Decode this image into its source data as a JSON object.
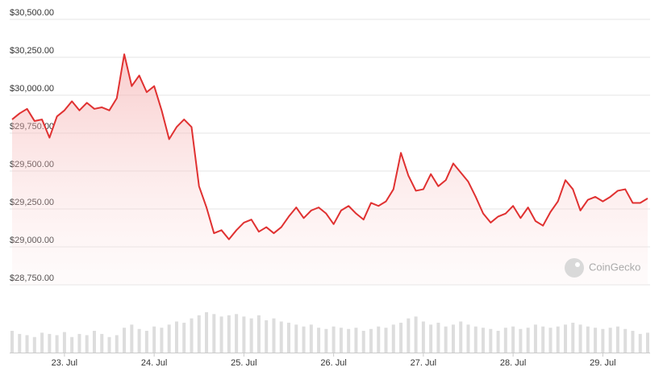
{
  "chart_data": {
    "type": "line",
    "categories": [
      null,
      null,
      null,
      null,
      null,
      null,
      null,
      "23. Jul",
      null,
      null,
      null,
      null,
      null,
      null,
      null,
      null,
      null,
      null,
      null,
      "24. Jul",
      null,
      null,
      null,
      null,
      null,
      null,
      null,
      null,
      null,
      null,
      null,
      "25. Jul",
      null,
      null,
      null,
      null,
      null,
      null,
      null,
      null,
      null,
      null,
      null,
      "26. Jul",
      null,
      null,
      null,
      null,
      null,
      null,
      null,
      null,
      null,
      null,
      null,
      "27. Jul",
      null,
      null,
      null,
      null,
      null,
      null,
      null,
      null,
      null,
      null,
      null,
      "28. Jul",
      null,
      null,
      null,
      null,
      null,
      null,
      null,
      null,
      null,
      null,
      null,
      "29. Jul",
      null,
      null,
      null,
      null,
      null,
      null
    ],
    "series": [
      {
        "color": "#e03131",
        "values": [
          29840,
          29880,
          29910,
          29830,
          29840,
          29720,
          29860,
          29900,
          29960,
          29900,
          29950,
          29910,
          29920,
          29900,
          29980,
          30270,
          30060,
          30130,
          30020,
          30060,
          29900,
          29710,
          29790,
          29840,
          29790,
          29400,
          29260,
          29090,
          29110,
          29050,
          29110,
          29160,
          29180,
          29100,
          29130,
          29090,
          29130,
          29200,
          29260,
          29190,
          29240,
          29260,
          29220,
          29150,
          29240,
          29270,
          29220,
          29180,
          29290,
          29270,
          29300,
          29380,
          29620,
          29470,
          29370,
          29380,
          29480,
          29400,
          29440,
          29550,
          29490,
          29430,
          29330,
          29220,
          29160,
          29200,
          29220,
          29270,
          29190,
          29260,
          29170,
          29140,
          29230,
          29300,
          29440,
          29380,
          29240,
          29310,
          29330,
          29300,
          29330,
          29370,
          29380,
          29290,
          29290,
          29320
        ]
      }
    ],
    "volume": {
      "color": "#dddddd",
      "vlim": [
        0,
        100
      ],
      "values": [
        35,
        30,
        28,
        25,
        32,
        30,
        28,
        33,
        25,
        30,
        28,
        35,
        30,
        25,
        28,
        40,
        45,
        38,
        35,
        42,
        40,
        45,
        50,
        48,
        55,
        60,
        65,
        62,
        58,
        60,
        62,
        58,
        55,
        60,
        52,
        55,
        50,
        48,
        45,
        42,
        45,
        40,
        38,
        42,
        40,
        38,
        40,
        35,
        38,
        42,
        40,
        45,
        48,
        55,
        58,
        50,
        45,
        48,
        42,
        45,
        50,
        45,
        42,
        40,
        38,
        35,
        40,
        42,
        38,
        40,
        45,
        42,
        40,
        42,
        45,
        48,
        45,
        42,
        40,
        38,
        40,
        42,
        38,
        35,
        30,
        32
      ]
    },
    "ylim": [
      28750,
      30500
    ],
    "yticks": [
      {
        "value": 28750,
        "label": "$28,750.00"
      },
      {
        "value": 29000,
        "label": "$29,000.00"
      },
      {
        "value": 29250,
        "label": "$29,250.00"
      },
      {
        "value": 29500,
        "label": "$29,500.00"
      },
      {
        "value": 29750,
        "label": "$29,750.00"
      },
      {
        "value": 30000,
        "label": "$30,000.00"
      },
      {
        "value": 30250,
        "label": "$30,250.00"
      },
      {
        "value": 30500,
        "label": "$30,500.00"
      }
    ],
    "grid": true,
    "watermark": "CoinGecko"
  }
}
